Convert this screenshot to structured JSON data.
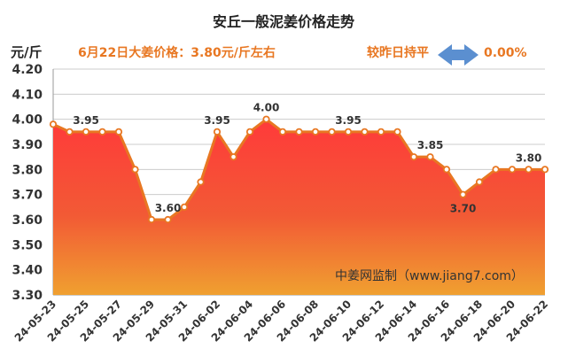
{
  "header": {
    "title": "安丘一般泥姜价格走势",
    "unit": "元/斤",
    "price_note": "6月22日大姜价格：3.80元/斤左右",
    "compare_label": "较昨日持平",
    "compare_value": "0.00%",
    "compare_icon": "double-arrow-icon"
  },
  "watermark": "中姜网监制（www.jiang7.com）",
  "colors": {
    "line": "#e87722",
    "area_top": "#ff3a3a",
    "area_bottom": "#f0a030",
    "arrow": "#5b8fd0",
    "grid": "#cccccc"
  },
  "chart_data": {
    "type": "area",
    "title": "安丘一般泥姜价格走势",
    "ylabel": "元/斤",
    "ylim": [
      3.3,
      4.2
    ],
    "yticks": [
      "3.30",
      "3.40",
      "3.50",
      "3.60",
      "3.70",
      "3.80",
      "3.90",
      "4.00",
      "4.10",
      "4.20"
    ],
    "grid": true,
    "x": [
      "24-05-23",
      "24-05-24",
      "24-05-25",
      "24-05-26",
      "24-05-27",
      "24-05-28",
      "24-05-29",
      "24-05-30",
      "24-05-31",
      "24-06-01",
      "24-06-02",
      "24-06-03",
      "24-06-04",
      "24-06-05",
      "24-06-06",
      "24-06-07",
      "24-06-08",
      "24-06-09",
      "24-06-10",
      "24-06-11",
      "24-06-12",
      "24-06-13",
      "24-06-14",
      "24-06-15",
      "24-06-16",
      "24-06-17",
      "24-06-18",
      "24-06-19",
      "24-06-20",
      "24-06-21",
      "24-06-22"
    ],
    "xtick_labels": [
      "24-05-23",
      "24-05-25",
      "24-05-27",
      "24-05-29",
      "24-05-31",
      "24-06-02",
      "24-06-04",
      "24-06-06",
      "24-06-08",
      "24-06-10",
      "24-06-12",
      "24-06-14",
      "24-06-16",
      "24-06-18",
      "24-06-20",
      "24-06-22"
    ],
    "series": [
      {
        "values": [
          3.98,
          3.95,
          3.95,
          3.95,
          3.95,
          3.8,
          3.6,
          3.6,
          3.65,
          3.75,
          3.95,
          3.85,
          3.95,
          4.0,
          3.95,
          3.95,
          3.95,
          3.95,
          3.95,
          3.95,
          3.95,
          3.95,
          3.85,
          3.85,
          3.8,
          3.7,
          3.75,
          3.8,
          3.8,
          3.8,
          3.8
        ]
      }
    ],
    "data_labels": [
      {
        "x": "24-05-25",
        "text": "3.95"
      },
      {
        "x": "24-05-30",
        "text": "3.60"
      },
      {
        "x": "24-06-02",
        "text": "3.95"
      },
      {
        "x": "24-06-05",
        "text": "4.00"
      },
      {
        "x": "24-06-10",
        "text": "3.95"
      },
      {
        "x": "24-06-15",
        "text": "3.85"
      },
      {
        "x": "24-06-17",
        "text": "3.70"
      },
      {
        "x": "24-06-21",
        "text": "3.80"
      }
    ]
  }
}
